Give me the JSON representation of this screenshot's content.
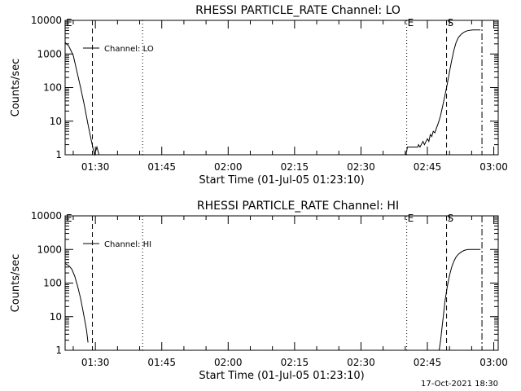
{
  "chart_data": [
    {
      "type": "line",
      "title": "RHESSI PARTICLE_RATE Channel: LO",
      "xlabel": "Start Time (01-Jul-05 01:23:10)",
      "ylabel": "Counts/sec",
      "yscale": "log",
      "ylim": [
        1,
        10000
      ],
      "xlim": [
        "01:23:10",
        "03:01:00"
      ],
      "x_ticks": [
        "01:30",
        "01:45",
        "02:00",
        "02:15",
        "02:30",
        "02:45",
        "03:00"
      ],
      "y_ticks": [
        "1",
        "10",
        "100",
        "1000",
        "10000"
      ],
      "legend": "Channel: LO",
      "legend_position": "top-left",
      "markers": [
        {
          "time": "01:23:10",
          "style": "dashdot",
          "label": "E"
        },
        {
          "time": "01:29:20",
          "style": "dashed",
          "label": ""
        },
        {
          "time": "01:40:40",
          "style": "dotted",
          "label": ""
        },
        {
          "time": "02:40:20",
          "style": "dotted",
          "label": "E"
        },
        {
          "time": "02:49:20",
          "style": "dashed",
          "label": "S"
        },
        {
          "time": "02:57:20",
          "style": "dashdot",
          "label": ""
        }
      ],
      "series": [
        {
          "segments": [
            [
              [
                "01:23:10",
                2200
              ],
              [
                "01:24:00",
                1700
              ],
              [
                "01:25:00",
                900
              ],
              [
                "01:25:50",
                300
              ],
              [
                "01:26:40",
                100
              ],
              [
                "01:27:30",
                30
              ],
              [
                "01:28:20",
                8
              ],
              [
                "01:29:00",
                3
              ],
              [
                "01:29:30",
                1.5
              ],
              [
                "01:29:50",
                1
              ],
              [
                "01:30:20",
                1.7
              ],
              [
                "01:30:50",
                1
              ]
            ],
            [
              [
                "02:40:10",
                1
              ],
              [
                "02:40:30",
                1.7
              ],
              [
                "02:41:00",
                1.7
              ],
              [
                "02:42:50",
                1.7
              ],
              [
                "02:43:00",
                2
              ],
              [
                "02:43:20",
                1.7
              ],
              [
                "02:44:00",
                2.5
              ],
              [
                "02:44:20",
                2
              ],
              [
                "02:45:00",
                3
              ],
              [
                "02:45:20",
                2.5
              ],
              [
                "02:45:40",
                4
              ],
              [
                "02:46:00",
                3.5
              ],
              [
                "02:46:20",
                5
              ],
              [
                "02:46:40",
                4.5
              ],
              [
                "02:47:00",
                6
              ],
              [
                "02:47:30",
                9
              ],
              [
                "02:48:00",
                15
              ],
              [
                "02:48:30",
                30
              ],
              [
                "02:49:00",
                60
              ],
              [
                "02:49:30",
                130
              ],
              [
                "02:50:00",
                300
              ],
              [
                "02:50:30",
                650
              ],
              [
                "02:51:00",
                1300
              ],
              [
                "02:51:30",
                2200
              ],
              [
                "02:52:00",
                3100
              ],
              [
                "02:52:40",
                3900
              ],
              [
                "02:53:20",
                4500
              ],
              [
                "02:54:00",
                4900
              ],
              [
                "02:54:40",
                5100
              ],
              [
                "02:55:20",
                5200
              ],
              [
                "02:56:00",
                5200
              ],
              [
                "02:57:00",
                5200
              ]
            ]
          ]
        }
      ]
    },
    {
      "type": "line",
      "title": "RHESSI PARTICLE_RATE Channel: HI",
      "xlabel": "Start Time (01-Jul-05 01:23:10)",
      "ylabel": "Counts/sec",
      "yscale": "log",
      "ylim": [
        1,
        10000
      ],
      "xlim": [
        "01:23:10",
        "03:01:00"
      ],
      "x_ticks": [
        "01:30",
        "01:45",
        "02:00",
        "02:15",
        "02:30",
        "02:45",
        "03:00"
      ],
      "y_ticks": [
        "1",
        "10",
        "100",
        "1000",
        "10000"
      ],
      "legend": "Channel: HI",
      "legend_position": "top-left",
      "markers": [
        {
          "time": "01:23:10",
          "style": "dashdot",
          "label": "E"
        },
        {
          "time": "01:29:20",
          "style": "dashed",
          "label": ""
        },
        {
          "time": "01:40:40",
          "style": "dotted",
          "label": ""
        },
        {
          "time": "02:40:20",
          "style": "dotted",
          "label": "E"
        },
        {
          "time": "02:49:20",
          "style": "dashed",
          "label": "S"
        },
        {
          "time": "02:57:20",
          "style": "dashdot",
          "label": ""
        }
      ],
      "series": [
        {
          "segments": [
            [
              [
                "01:23:10",
                380
              ],
              [
                "01:24:00",
                330
              ],
              [
                "01:24:40",
                260
              ],
              [
                "01:25:20",
                160
              ],
              [
                "01:26:00",
                80
              ],
              [
                "01:26:40",
                35
              ],
              [
                "01:27:20",
                12
              ],
              [
                "01:28:00",
                4
              ],
              [
                "01:28:20",
                1.7
              ]
            ],
            [
              [
                "02:47:40",
                1
              ],
              [
                "02:48:00",
                2
              ],
              [
                "02:48:20",
                5
              ],
              [
                "02:48:40",
                12
              ],
              [
                "02:49:00",
                30
              ],
              [
                "02:49:30",
                80
              ],
              [
                "02:50:00",
                170
              ],
              [
                "02:50:30",
                300
              ],
              [
                "02:51:00",
                450
              ],
              [
                "02:51:30",
                600
              ],
              [
                "02:52:00",
                720
              ],
              [
                "02:52:40",
                850
              ],
              [
                "02:53:20",
                940
              ],
              [
                "02:54:00",
                990
              ],
              [
                "02:55:00",
                1000
              ],
              [
                "02:57:00",
                1000
              ]
            ]
          ]
        }
      ]
    }
  ],
  "footer": {
    "timestamp": "17-Oct-2021 18:30"
  }
}
